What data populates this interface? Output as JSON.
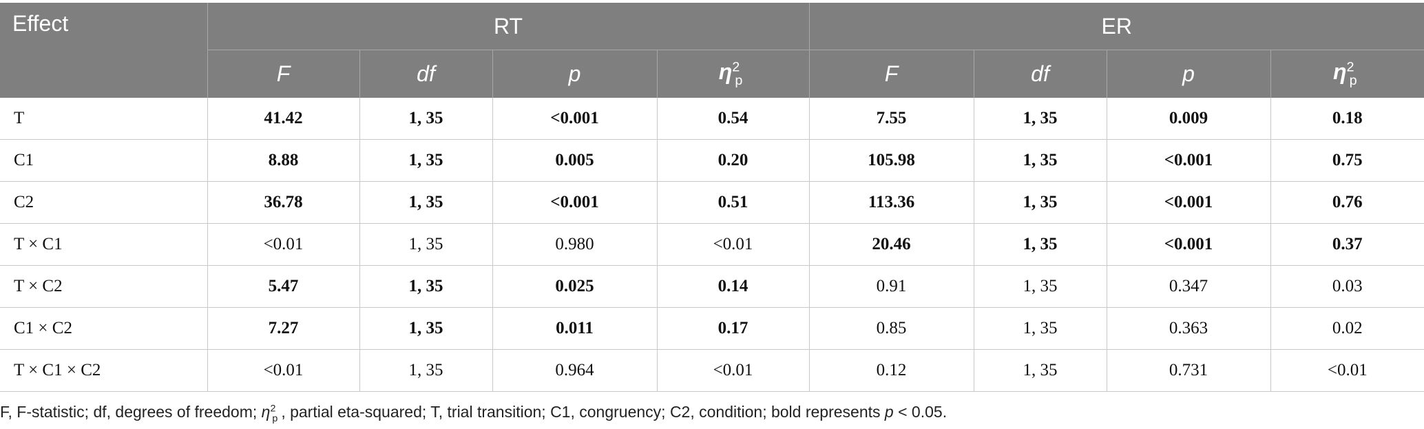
{
  "table": {
    "header": {
      "effect": "Effect",
      "groups": [
        "RT",
        "ER"
      ],
      "columns": [
        {
          "text": "F"
        },
        {
          "text": "df"
        },
        {
          "text": "p"
        },
        {
          "symbol": "η",
          "sup": "2",
          "sub": "p"
        },
        {
          "text": "F"
        },
        {
          "text": "df"
        },
        {
          "text": "p"
        },
        {
          "symbol": "η",
          "sup": "2",
          "sub": "p"
        }
      ]
    },
    "rows": [
      {
        "effect": "T",
        "cells": [
          "41.42",
          "1, 35",
          "<0.001",
          "0.54",
          "7.55",
          "1, 35",
          "0.009",
          "0.18"
        ],
        "bold": [
          true,
          true,
          true,
          true,
          true,
          true,
          true,
          true
        ]
      },
      {
        "effect": "C1",
        "cells": [
          "8.88",
          "1, 35",
          "0.005",
          "0.20",
          "105.98",
          "1, 35",
          "<0.001",
          "0.75"
        ],
        "bold": [
          true,
          true,
          true,
          true,
          true,
          true,
          true,
          true
        ]
      },
      {
        "effect": "C2",
        "cells": [
          "36.78",
          "1, 35",
          "<0.001",
          "0.51",
          "113.36",
          "1, 35",
          "<0.001",
          "0.76"
        ],
        "bold": [
          true,
          true,
          true,
          true,
          true,
          true,
          true,
          true
        ]
      },
      {
        "effect": "T × C1",
        "cells": [
          "<0.01",
          "1, 35",
          "0.980",
          "<0.01",
          "20.46",
          "1, 35",
          "<0.001",
          "0.37"
        ],
        "bold": [
          false,
          false,
          false,
          false,
          true,
          true,
          true,
          true
        ]
      },
      {
        "effect": "T × C2",
        "cells": [
          "5.47",
          "1, 35",
          "0.025",
          "0.14",
          "0.91",
          "1, 35",
          "0.347",
          "0.03"
        ],
        "bold": [
          true,
          true,
          true,
          true,
          false,
          false,
          false,
          false
        ]
      },
      {
        "effect": "C1 × C2",
        "cells": [
          "7.27",
          "1, 35",
          "0.011",
          "0.17",
          "0.85",
          "1, 35",
          "0.363",
          "0.02"
        ],
        "bold": [
          true,
          true,
          true,
          true,
          false,
          false,
          false,
          false
        ]
      },
      {
        "effect": "T × C1 × C2",
        "cells": [
          "<0.01",
          "1, 35",
          "0.964",
          "<0.01",
          "0.12",
          "1, 35",
          "0.731",
          "<0.01"
        ],
        "bold": [
          false,
          false,
          false,
          false,
          false,
          false,
          false,
          false
        ]
      }
    ]
  },
  "footnote": {
    "parts": [
      {
        "text": "F, F-statistic; df, degrees of freedom; "
      },
      {
        "symbol": "η",
        "sup": "2",
        "sub": "p"
      },
      {
        "text": ", partial eta-squared; T, trial transition; C1, congruency; C2, condition; bold represents "
      },
      {
        "text": "p",
        "italic": true
      },
      {
        "text": " < 0.05."
      }
    ]
  }
}
